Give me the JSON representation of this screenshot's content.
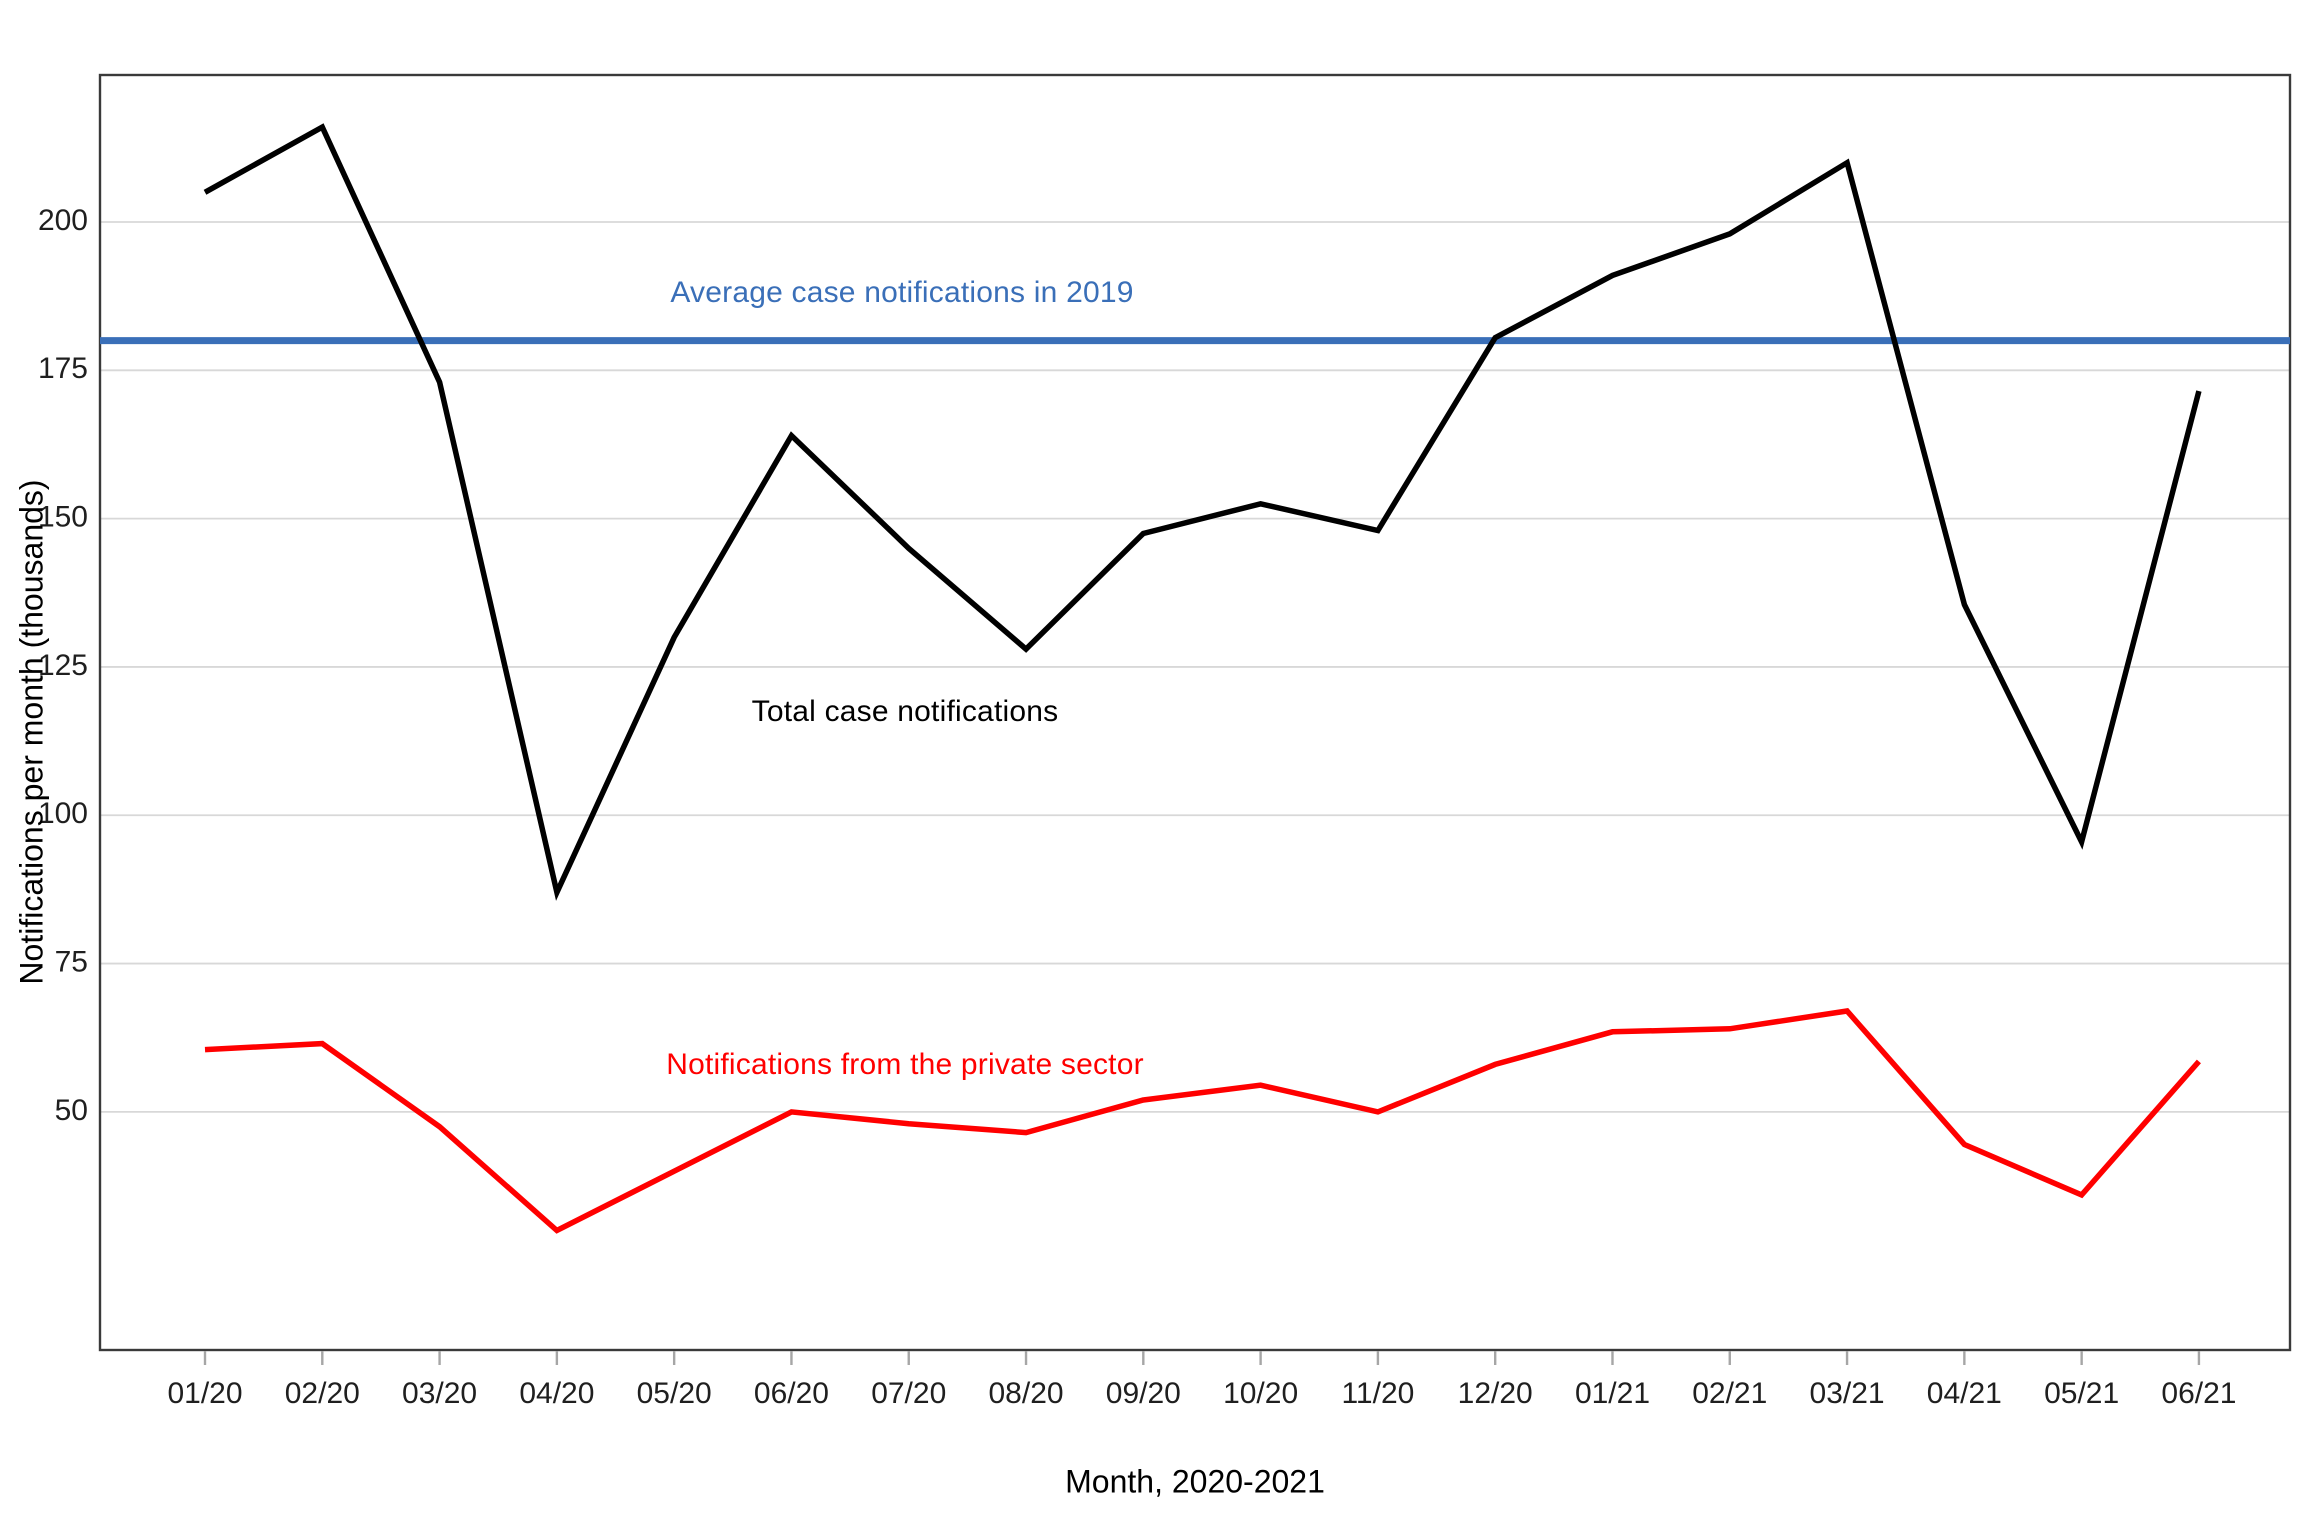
{
  "chart_data": {
    "type": "line",
    "xlabel": "Month, 2020-2021",
    "ylabel": "Notifications per month (thousands)",
    "x_labels": [
      "01/20",
      "02/20",
      "03/20",
      "04/20",
      "05/20",
      "06/20",
      "07/20",
      "08/20",
      "09/20",
      "10/20",
      "11/20",
      "12/20",
      "01/21",
      "02/21",
      "03/21",
      "04/21",
      "05/21",
      "06/21"
    ],
    "y_ticks": [
      50,
      75,
      100,
      125,
      150,
      175,
      200
    ],
    "ylim": [
      10,
      225
    ],
    "grid": "horizontal",
    "legend_position": "inline-annotations",
    "series": [
      {
        "name": "Total case notifications",
        "color": "#000000",
        "values": [
          205,
          216,
          173,
          87,
          130,
          164,
          145,
          128,
          147.5,
          152.5,
          148,
          180.5,
          191,
          198,
          210,
          135.5,
          95.5,
          171.5
        ]
      },
      {
        "name": "Notifications from the private sector",
        "color": "#FF0000",
        "values": [
          60.5,
          61.5,
          47.5,
          30,
          40,
          50,
          48,
          46.5,
          52,
          54.5,
          50,
          58,
          63.5,
          64,
          67,
          44.5,
          36,
          58.5
        ]
      }
    ],
    "reference_line": {
      "name": "Average case notifications in 2019",
      "color": "#3A6FB8",
      "value": 180
    },
    "annotations": {
      "avg_label": "Average case notifications in 2019",
      "total_label": "Total case notifications",
      "private_label": "Notifications from the private sector"
    }
  },
  "colors": {
    "total_line": "#000000",
    "private_line": "#FF0000",
    "reference_line": "#3A6FB8",
    "gridline": "#D8D8D8",
    "panel_border": "#3A3A3A",
    "tick_mark": "#A6A6A6",
    "tick_label": "#1F1F1F",
    "background": "#FFFFFF"
  }
}
